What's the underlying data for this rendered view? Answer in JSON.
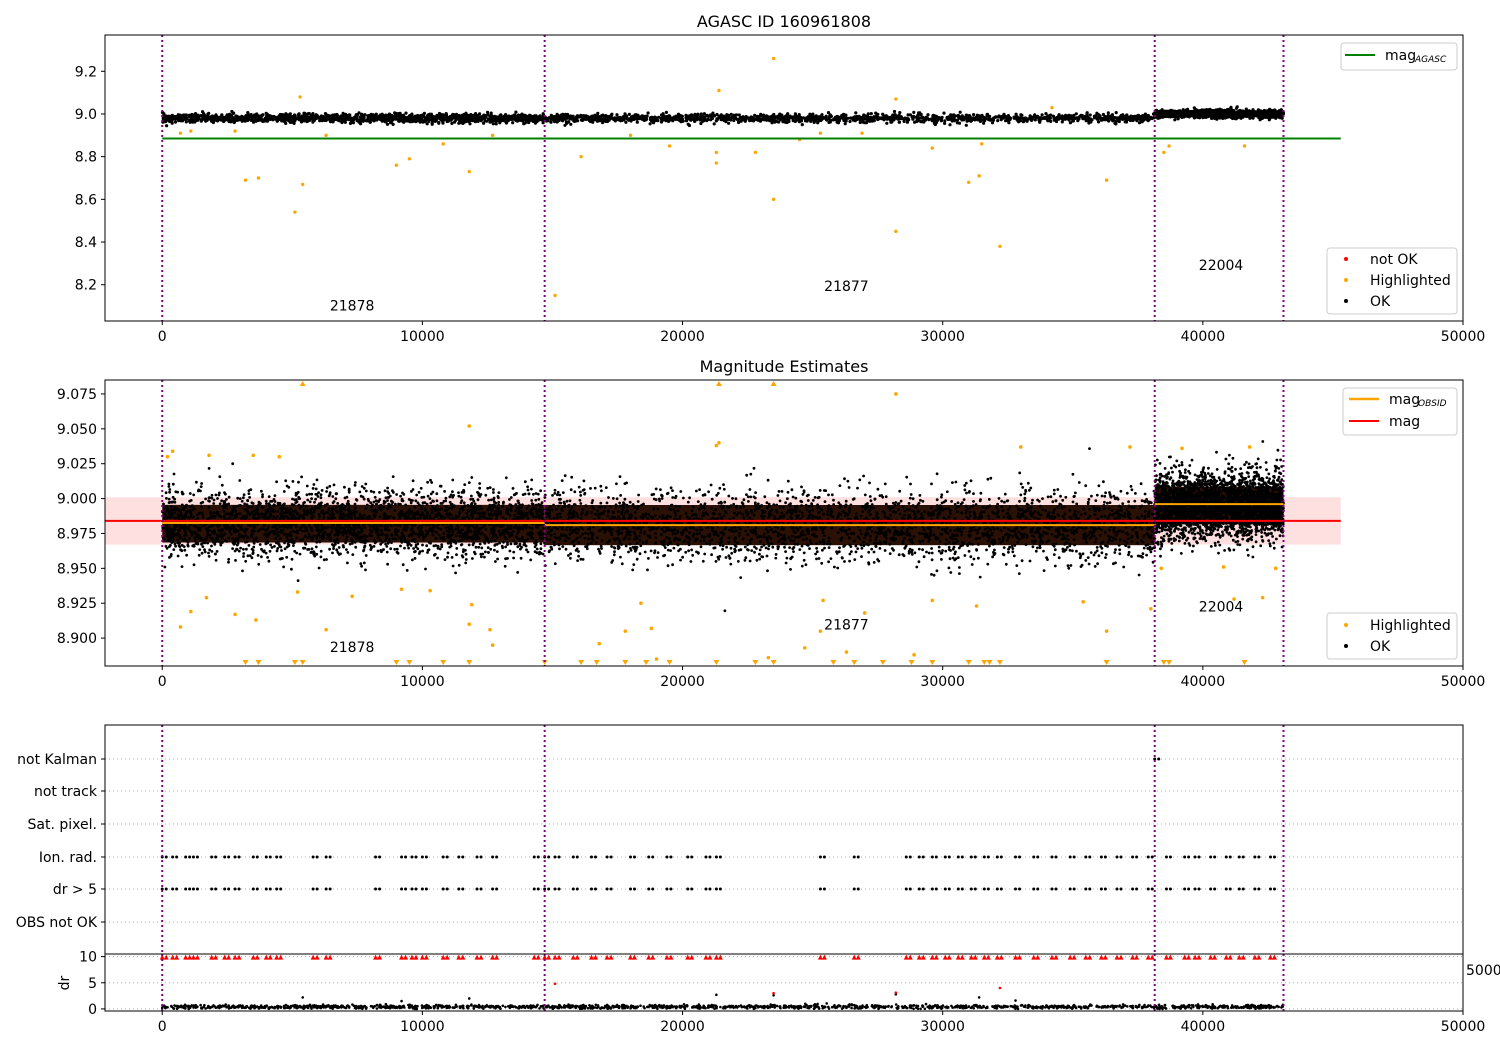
{
  "chart_data": [
    {
      "type": "scatter",
      "title": "AGASC ID 160961808",
      "xlim": [
        -2200,
        50000
      ],
      "ylim": [
        8.03,
        9.37
      ],
      "xticks": [
        0,
        10000,
        20000,
        30000,
        40000,
        50000
      ],
      "yticks": [
        8.2,
        8.4,
        8.6,
        8.8,
        9.0,
        9.2
      ],
      "vlines": [
        0,
        14700,
        38150,
        43100
      ],
      "obsid_labels": [
        {
          "text": "21878",
          "x": 7300,
          "y": 8.08
        },
        {
          "text": "21877",
          "x": 26300,
          "y": 8.17
        },
        {
          "text": "22004",
          "x": 40700,
          "y": 8.27
        }
      ],
      "hlines": [
        {
          "name": "mag_AGASC",
          "y": 8.885,
          "x0": 0,
          "x1": 45300,
          "color": "#008000"
        }
      ],
      "series": [
        {
          "name": "OK",
          "color": "#000000",
          "segments": [
            {
              "x0": 0,
              "x1": 14700,
              "center": 8.98,
              "spread": 0.025
            },
            {
              "x0": 14700,
              "x1": 38150,
              "center": 8.98,
              "spread": 0.025
            },
            {
              "x0": 38150,
              "x1": 43100,
              "center": 9.0,
              "spread": 0.022
            }
          ]
        },
        {
          "name": "Highlighted",
          "color": "#ffa500",
          "points": [
            [
              3200,
              8.69
            ],
            [
              3700,
              8.7
            ],
            [
              5100,
              8.54
            ],
            [
              5400,
              8.67
            ],
            [
              5300,
              9.08
            ],
            [
              9000,
              8.76
            ],
            [
              9500,
              8.79
            ],
            [
              11800,
              8.73
            ],
            [
              10800,
              8.86
            ],
            [
              15100,
              8.15
            ],
            [
              16100,
              8.8
            ],
            [
              18000,
              8.9
            ],
            [
              19500,
              8.85
            ],
            [
              21300,
              8.77
            ],
            [
              21300,
              8.82
            ],
            [
              21400,
              9.11
            ],
            [
              22800,
              8.82
            ],
            [
              23500,
              8.6
            ],
            [
              23500,
              9.26
            ],
            [
              28200,
              8.45
            ],
            [
              28200,
              9.07
            ],
            [
              29600,
              8.84
            ],
            [
              31000,
              8.68
            ],
            [
              31400,
              8.71
            ],
            [
              31500,
              8.86
            ],
            [
              32200,
              8.38
            ],
            [
              36300,
              8.69
            ],
            [
              38500,
              8.82
            ],
            [
              38700,
              8.85
            ],
            [
              41600,
              8.85
            ],
            [
              700,
              8.91
            ],
            [
              1100,
              8.92
            ],
            [
              2800,
              8.92
            ],
            [
              6300,
              8.9
            ],
            [
              12700,
              8.9
            ],
            [
              25300,
              8.91
            ],
            [
              26900,
              8.91
            ],
            [
              34200,
              9.03
            ],
            [
              24500,
              8.88
            ]
          ]
        },
        {
          "name": "not OK",
          "color": "#ff0000",
          "points": []
        }
      ],
      "legend": [
        {
          "position": "top-right",
          "entries": [
            {
              "name": "mag",
              "sub": "AGASC",
              "style": "line",
              "color": "#008000"
            }
          ]
        },
        {
          "position": "bottom-right",
          "entries": [
            {
              "name": "not OK",
              "style": "dot",
              "color": "#ff0000"
            },
            {
              "name": "Highlighted",
              "style": "dot",
              "color": "#ffa500"
            },
            {
              "name": "OK",
              "style": "dot",
              "color": "#000000"
            }
          ]
        }
      ]
    },
    {
      "type": "scatter",
      "title": "Magnitude Estimates",
      "xlim": [
        -2200,
        50000
      ],
      "ylim": [
        8.88,
        9.085
      ],
      "xticks": [
        0,
        10000,
        20000,
        30000,
        40000,
        50000
      ],
      "yticks": [
        8.9,
        8.925,
        8.95,
        8.975,
        9.0,
        9.025,
        9.05,
        9.075
      ],
      "ytick_labels": [
        "8.900",
        "8.925",
        "8.950",
        "8.975",
        "9.000",
        "9.025",
        "9.050",
        "9.075"
      ],
      "vlines": [
        0,
        14700,
        38150,
        43100
      ],
      "obsid_labels": [
        {
          "text": "21878",
          "x": 7300,
          "y": 8.89
        },
        {
          "text": "21877",
          "x": 26300,
          "y": 8.906
        },
        {
          "text": "22004",
          "x": 40700,
          "y": 8.919
        }
      ],
      "bands": [
        {
          "name": "mag",
          "y0": 8.967,
          "y1": 9.001,
          "x0": -2200,
          "x1": 45300,
          "color": "#ffcccc"
        }
      ],
      "hlines": [
        {
          "name": "mag",
          "y": 8.984,
          "x0": -2200,
          "x1": 45300,
          "color": "#ff0000"
        },
        {
          "name": "mag_OBSID",
          "y": 8.9825,
          "x0": 0,
          "x1": 14700,
          "color": "#ffa500"
        },
        {
          "name": "mag_OBSID",
          "y": 8.981,
          "x0": 14700,
          "x1": 38150,
          "color": "#ffa500"
        },
        {
          "name": "mag_OBSID",
          "y": 8.996,
          "x0": 38150,
          "x1": 43100,
          "color": "#ffa500"
        }
      ],
      "series": [
        {
          "name": "OK",
          "color": "#000000",
          "segments": [
            {
              "x0": 0,
              "x1": 14700,
              "center": 8.982,
              "spread": 0.03
            },
            {
              "x0": 14700,
              "x1": 38150,
              "center": 8.981,
              "spread": 0.032
            },
            {
              "x0": 38150,
              "x1": 43100,
              "center": 8.995,
              "spread": 0.03
            }
          ]
        },
        {
          "name": "Highlighted",
          "color": "#ffa500",
          "points": [
            [
              700,
              8.908
            ],
            [
              1100,
              8.919
            ],
            [
              1700,
              8.929
            ],
            [
              2800,
              8.917
            ],
            [
              3600,
              8.913
            ],
            [
              5200,
              8.933
            ],
            [
              6300,
              8.906
            ],
            [
              7300,
              8.93
            ],
            [
              9200,
              8.935
            ],
            [
              10300,
              8.934
            ],
            [
              11800,
              8.91
            ],
            [
              11900,
              8.924
            ],
            [
              11800,
              9.052
            ],
            [
              12600,
              8.906
            ],
            [
              12700,
              8.895
            ],
            [
              16800,
              8.896
            ],
            [
              17800,
              8.905
            ],
            [
              18400,
              8.925
            ],
            [
              18800,
              8.907
            ],
            [
              19000,
              8.885
            ],
            [
              21300,
              9.038
            ],
            [
              21400,
              9.04
            ],
            [
              23300,
              8.886
            ],
            [
              24700,
              8.893
            ],
            [
              25300,
              8.905
            ],
            [
              25400,
              8.927
            ],
            [
              26300,
              8.89
            ],
            [
              27000,
              8.918
            ],
            [
              28200,
              9.075
            ],
            [
              28900,
              8.888
            ],
            [
              29600,
              8.927
            ],
            [
              31300,
              8.923
            ],
            [
              33000,
              9.037
            ],
            [
              35400,
              8.926
            ],
            [
              36300,
              8.905
            ],
            [
              37200,
              9.037
            ],
            [
              38000,
              8.921
            ],
            [
              38400,
              8.95
            ],
            [
              39200,
              9.036
            ],
            [
              40800,
              8.951
            ],
            [
              41200,
              8.928
            ],
            [
              41800,
              9.037
            ],
            [
              42300,
              8.929
            ],
            [
              42800,
              8.95
            ],
            [
              400,
              9.034
            ],
            [
              1800,
              9.031
            ],
            [
              3500,
              9.031
            ],
            [
              4500,
              9.03
            ],
            [
              200,
              9.03
            ]
          ],
          "clipped_low": [
            3200,
            3700,
            5100,
            5400,
            9000,
            9500,
            10800,
            11800,
            14700,
            16100,
            16700,
            17800,
            18600,
            19500,
            21300,
            22800,
            23500,
            25800,
            26600,
            27700,
            28800,
            29600,
            31000,
            31600,
            31800,
            32200,
            36300,
            38500,
            38700,
            41600
          ],
          "clipped_high": [
            5400,
            21400,
            23500
          ]
        }
      ],
      "legend": [
        {
          "position": "top-right",
          "entries": [
            {
              "name": "mag",
              "sub": "OBSID",
              "style": "line",
              "color": "#ffa500"
            },
            {
              "name": "mag",
              "style": "line",
              "color": "#ff0000"
            }
          ]
        },
        {
          "position": "bottom-right",
          "entries": [
            {
              "name": "Highlighted",
              "style": "dot",
              "color": "#ffa500"
            },
            {
              "name": "OK",
              "style": "dot",
              "color": "#000000"
            }
          ]
        }
      ]
    },
    {
      "type": "scatter",
      "title": "",
      "xlim": [
        -2200,
        50000
      ],
      "vlines": [
        0,
        14700,
        38150,
        43100
      ],
      "flag_rows": [
        "not Kalman",
        "not track",
        "Sat. pixel.",
        "Ion. rad.",
        "dr > 5",
        "OBS not OK"
      ],
      "flag_points": {
        "not Kalman": [
          38150
        ],
        "not track": [],
        "Sat. pixel.": [],
        "Ion. rad.": [
          0,
          400,
          900,
          1200,
          1900,
          2400,
          2800,
          3500,
          4000,
          4400,
          5800,
          6300,
          8200,
          9200,
          9600,
          10000,
          10800,
          11400,
          12100,
          12700,
          14300,
          14700,
          15100,
          15800,
          16500,
          17100,
          18000,
          18700,
          19400,
          20200,
          20900,
          21300,
          25300,
          26600,
          28600,
          29100,
          29600,
          30100,
          30600,
          31100,
          31600,
          32100,
          32800,
          33500,
          34200,
          34900,
          35500,
          36100,
          36700,
          37300,
          37900,
          38600,
          39300,
          39700,
          40300,
          40900,
          41400,
          42000,
          42600
        ],
        "dr > 5": [
          0,
          400,
          900,
          1200,
          1900,
          2400,
          2800,
          3500,
          4000,
          4400,
          5800,
          6300,
          8200,
          9200,
          9600,
          10000,
          10800,
          11400,
          12100,
          12700,
          14300,
          14700,
          15100,
          15800,
          16500,
          17100,
          18000,
          18700,
          19400,
          20200,
          20900,
          21300,
          25300,
          26600,
          28600,
          29100,
          29600,
          30100,
          30600,
          31100,
          31600,
          32100,
          32800,
          33500,
          34200,
          34900,
          35500,
          36100,
          36700,
          37300,
          37900,
          38600,
          39300,
          39700,
          40300,
          40900,
          41400,
          42000,
          42600
        ],
        "OBS not OK": []
      }
    },
    {
      "type": "scatter",
      "title": "",
      "ylabel": "dr",
      "xlim": [
        -2200,
        50000
      ],
      "ylim": [
        -0.4,
        10.5
      ],
      "xticks": [
        0,
        10000,
        20000,
        30000,
        40000,
        50000
      ],
      "yticks": [
        0,
        5,
        10
      ],
      "vlines": [
        0,
        14700,
        38150,
        43100
      ],
      "series": [
        {
          "name": "dr",
          "color": "#000000",
          "segments": [
            {
              "x0": 0,
              "x1": 43100,
              "center": 0.4,
              "spread": 0.4
            }
          ],
          "points": [
            [
              5400,
              2.2
            ],
            [
              9200,
              1.5
            ],
            [
              11800,
              2.0
            ],
            [
              21300,
              2.7
            ],
            [
              23500,
              2.6
            ],
            [
              28200,
              2.8
            ],
            [
              31400,
              2.2
            ],
            [
              32800,
              1.6
            ]
          ]
        },
        {
          "name": "dr > 5",
          "color": "#ff0000",
          "points": [
            [
              15100,
              4.8
            ],
            [
              23500,
              3.0
            ],
            [
              28200,
              3.1
            ],
            [
              32200,
              4.0
            ]
          ],
          "capped": [
            0,
            400,
            900,
            1200,
            1900,
            2400,
            2800,
            3500,
            4000,
            4400,
            5800,
            6300,
            8200,
            9200,
            9600,
            10000,
            10800,
            11400,
            12100,
            12700,
            14300,
            14700,
            15100,
            15800,
            16500,
            17100,
            18000,
            18700,
            19400,
            20200,
            20900,
            21300,
            25300,
            26600,
            28600,
            29100,
            29600,
            30100,
            30600,
            31100,
            31600,
            32100,
            32800,
            33500,
            34200,
            34900,
            35500,
            36100,
            36700,
            37300,
            37900,
            38600,
            39300,
            39700,
            40300,
            40900,
            41400,
            42000,
            42600
          ]
        }
      ],
      "overflow_tick_label": "5000"
    }
  ]
}
